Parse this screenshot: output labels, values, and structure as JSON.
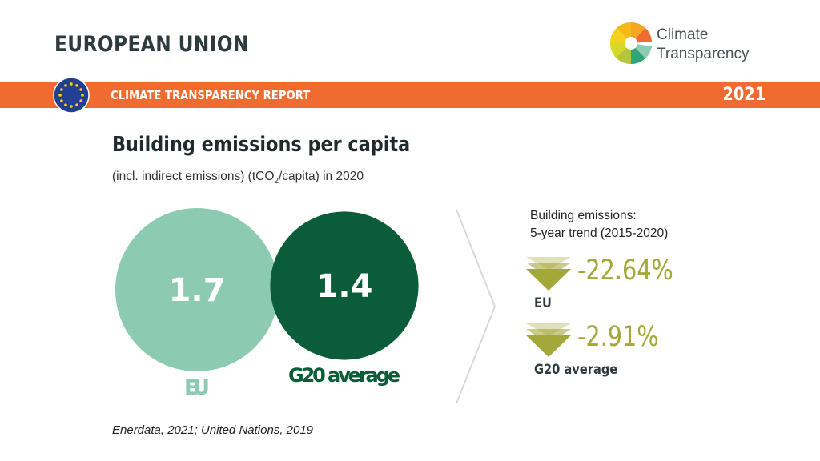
{
  "header": {
    "country": "EUROPEAN UNION",
    "logo_line1": "Climate",
    "logo_line2": "Transparency"
  },
  "banner": {
    "label": "CLIMATE TRANSPARENCY REPORT",
    "year": "2021",
    "color": "#ef6b2f"
  },
  "section": {
    "title": "Building emissions per capita",
    "subtitle_pre": "(incl. indirect emissions) (tCO",
    "subtitle_sub": "2",
    "subtitle_post": "/capita) in 2020"
  },
  "chart_data": {
    "type": "bubble",
    "unit": "tCO2/capita",
    "items": [
      {
        "name": "EU",
        "value": 1.7,
        "value_label": "1.7",
        "color": "#8ccbb2"
      },
      {
        "name": "G20 average",
        "value": 1.4,
        "value_label": "1.4",
        "color": "#0b5c38"
      }
    ]
  },
  "trend": {
    "title_line1": "Building emissions:",
    "title_line2": "5-year trend (2015-2020)",
    "arrow_color": "#a3a83a",
    "items": [
      {
        "label": "EU",
        "value": "-22.64%"
      },
      {
        "label": "G20 average",
        "value": "-2.91%"
      }
    ]
  },
  "source": "Enerdata, 2021; United Nations, 2019"
}
